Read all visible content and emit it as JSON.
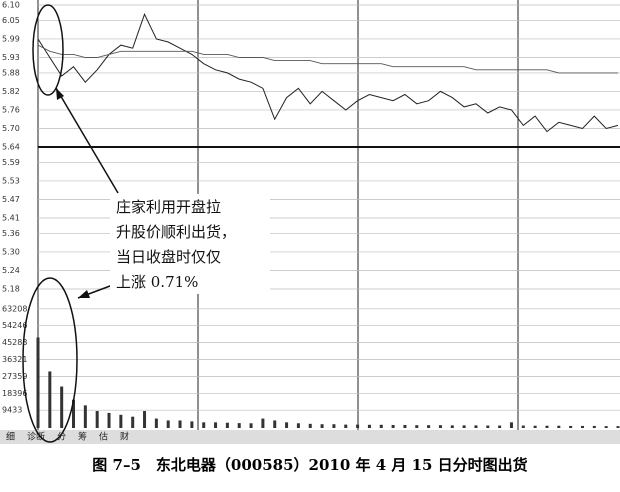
{
  "chart_data": [
    {
      "type": "line",
      "ylim": [
        5.18,
        6.1
      ],
      "yticks": [
        {
          "value": 6.1,
          "label": "6.10"
        },
        6.05,
        5.99,
        5.93,
        5.88,
        5.82,
        5.76,
        {
          "value": 5.7,
          "label": "5.70"
        },
        5.64,
        5.59,
        5.53,
        5.47,
        5.41,
        5.36,
        {
          "value": 5.3,
          "label": "5.30"
        },
        5.24,
        5.18
      ],
      "grid": true,
      "series": [
        {
          "color": "#222222",
          "values": [
            5.99,
            5.93,
            5.87,
            5.9,
            5.85,
            5.89,
            5.94,
            5.97,
            5.96,
            6.07,
            5.99,
            5.98,
            5.96,
            5.94,
            5.91,
            5.89,
            5.88,
            5.86,
            5.85,
            5.83,
            5.73,
            5.8,
            5.83,
            5.78,
            5.82,
            5.79,
            5.76,
            5.79,
            5.81,
            5.8,
            5.79,
            5.81,
            5.78,
            5.79,
            5.82,
            5.8,
            5.77,
            5.78,
            5.75,
            5.77,
            5.76,
            5.71,
            5.74,
            5.69,
            5.72,
            5.71,
            5.7,
            5.74,
            5.7,
            5.71
          ]
        },
        {
          "color": "#555555",
          "values": [
            5.97,
            5.95,
            5.94,
            5.94,
            5.93,
            5.93,
            5.94,
            5.95,
            5.95,
            5.95,
            5.95,
            5.95,
            5.95,
            5.95,
            5.94,
            5.94,
            5.94,
            5.93,
            5.93,
            5.93,
            5.92,
            5.92,
            5.92,
            5.92,
            5.91,
            5.91,
            5.91,
            5.91,
            5.91,
            5.91,
            5.9,
            5.9,
            5.9,
            5.9,
            5.9,
            5.9,
            5.9,
            5.89,
            5.89,
            5.89,
            5.89,
            5.89,
            5.89,
            5.89,
            5.88,
            5.88,
            5.88,
            5.88,
            5.88,
            5.88
          ]
        }
      ],
      "annotation": [
        "庄家利用开盘拉",
        "升股价顺利出货，",
        "当日收盘时仅仅",
        "上涨 0.71%"
      ]
    },
    {
      "type": "bar",
      "ylim": [
        0,
        70000
      ],
      "yticks": [
        63208,
        54246,
        45283,
        36321,
        27359,
        18396,
        9433
      ],
      "grid": true,
      "color": "#333333",
      "values": [
        48000,
        30000,
        22000,
        15000,
        12000,
        9000,
        8000,
        7000,
        6000,
        9000,
        5000,
        4000,
        4000,
        3500,
        3000,
        3000,
        2800,
        2600,
        2500,
        5000,
        4000,
        3000,
        2500,
        2200,
        2000,
        2000,
        1800,
        1800,
        1700,
        1700,
        1600,
        1600,
        1500,
        1500,
        1500,
        1400,
        1400,
        1400,
        1300,
        1300,
        3000,
        1300,
        1200,
        1200,
        1200,
        1100,
        1100,
        1100,
        1000,
        1000
      ]
    }
  ],
  "tabs": [
    "细",
    "诊断",
    "分",
    "筹",
    "估",
    "财"
  ],
  "caption": "图 7–5　东北电器（000585）2010 年 4 月 15 日分时图出货"
}
